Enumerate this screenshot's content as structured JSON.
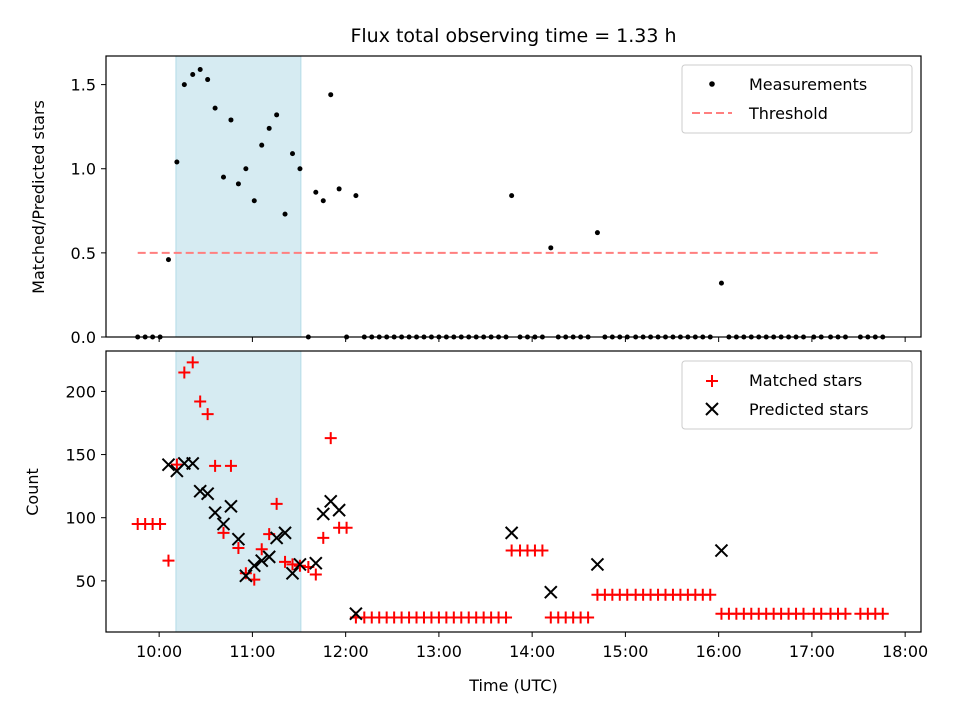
{
  "chart_data": [
    {
      "type": "scatter",
      "panel": "top",
      "title": "Flux total observing time = 1.33 h",
      "xlabel": "",
      "ylabel": "Matched/Predicted stars",
      "xlim": [
        9.43,
        18.17
      ],
      "ylim": [
        0,
        1.67
      ],
      "yticks": [
        0.0,
        0.5,
        1.0,
        1.5
      ],
      "ytick_labels": [
        "0.0",
        "0.5",
        "1.0",
        "1.5"
      ],
      "shaded_span": [
        10.18,
        11.52
      ],
      "threshold": {
        "name": "Threshold",
        "value": 0.5,
        "x_range": [
          9.77,
          17.73
        ],
        "color": "#ff7f7f"
      },
      "series": [
        {
          "name": "Measurements",
          "color": "#000000",
          "marker": "dot",
          "x": [
            9.77,
            9.85,
            9.93,
            10.01,
            10.1,
            10.19,
            10.27,
            10.36,
            10.44,
            10.52,
            10.6,
            10.69,
            10.77,
            10.85,
            10.93,
            11.02,
            11.1,
            11.18,
            11.26,
            11.35,
            11.43,
            11.51,
            11.6,
            11.68,
            11.76,
            11.84,
            11.93,
            12.01,
            12.11,
            12.2,
            12.28,
            12.36,
            12.44,
            12.52,
            12.6,
            12.68,
            12.76,
            12.84,
            12.92,
            13.0,
            13.08,
            13.16,
            13.24,
            13.32,
            13.4,
            13.48,
            13.56,
            13.64,
            13.72,
            13.78,
            13.87,
            13.95,
            14.03,
            14.11,
            14.2,
            14.28,
            14.36,
            14.44,
            14.52,
            14.6,
            14.7,
            14.78,
            14.86,
            14.94,
            15.02,
            15.11,
            15.19,
            15.27,
            15.35,
            15.43,
            15.51,
            15.59,
            15.67,
            15.75,
            15.83,
            15.91,
            16.03,
            16.11,
            16.19,
            16.27,
            16.35,
            16.43,
            16.51,
            16.59,
            16.67,
            16.75,
            16.83,
            16.91,
            17.02,
            17.1,
            17.2,
            17.28,
            17.36,
            17.52,
            17.6,
            17.68,
            17.76
          ],
          "y": [
            0,
            0,
            0,
            0,
            0.46,
            1.04,
            1.5,
            1.56,
            1.59,
            1.53,
            1.36,
            0.95,
            1.29,
            0.91,
            1.0,
            0.81,
            1.14,
            1.24,
            1.32,
            0.73,
            1.09,
            1.0,
            0,
            0.86,
            0.81,
            1.44,
            0.88,
            0,
            0.84,
            0,
            0,
            0,
            0,
            0,
            0,
            0,
            0,
            0,
            0,
            0,
            0,
            0,
            0,
            0,
            0,
            0,
            0,
            0,
            0,
            0.84,
            0,
            0,
            0,
            0,
            0.53,
            0,
            0,
            0,
            0,
            0,
            0.62,
            0,
            0,
            0,
            0,
            0,
            0,
            0,
            0,
            0,
            0,
            0,
            0,
            0,
            0,
            0,
            0.32,
            0,
            0,
            0,
            0,
            0,
            0,
            0,
            0,
            0,
            0,
            0,
            0,
            0,
            0,
            0,
            0,
            0,
            0,
            0,
            0
          ]
        }
      ],
      "legend": {
        "location": "top-right",
        "entries": [
          "Measurements",
          "Threshold"
        ]
      }
    },
    {
      "type": "scatter",
      "panel": "bottom",
      "title": "",
      "xlabel": "Time (UTC)",
      "ylabel": "Count",
      "xlim": [
        9.43,
        18.17
      ],
      "ylim": [
        9.5,
        232
      ],
      "yticks": [
        50,
        100,
        150,
        200
      ],
      "ytick_labels": [
        "50",
        "100",
        "150",
        "200"
      ],
      "xticks": [
        10,
        11,
        12,
        13,
        14,
        15,
        16,
        17,
        18
      ],
      "xtick_labels": [
        "10:00",
        "11:00",
        "12:00",
        "13:00",
        "14:00",
        "15:00",
        "16:00",
        "17:00",
        "18:00"
      ],
      "shaded_span": [
        10.18,
        11.52
      ],
      "series": [
        {
          "name": "Matched stars",
          "color": "#ff0000",
          "marker": "plus",
          "x": [
            9.77,
            9.85,
            9.93,
            10.01,
            10.1,
            10.19,
            10.27,
            10.36,
            10.44,
            10.52,
            10.6,
            10.69,
            10.77,
            10.85,
            10.93,
            11.02,
            11.1,
            11.18,
            11.26,
            11.35,
            11.43,
            11.51,
            11.6,
            11.68,
            11.76,
            11.84,
            11.93,
            12.01,
            12.11,
            12.2,
            12.28,
            12.36,
            12.44,
            12.52,
            12.6,
            12.68,
            12.76,
            12.84,
            12.92,
            13.0,
            13.08,
            13.16,
            13.24,
            13.32,
            13.4,
            13.48,
            13.56,
            13.64,
            13.72,
            13.78,
            13.87,
            13.95,
            14.03,
            14.11,
            14.2,
            14.28,
            14.36,
            14.44,
            14.52,
            14.6,
            14.7,
            14.78,
            14.86,
            14.94,
            15.02,
            15.11,
            15.19,
            15.27,
            15.35,
            15.43,
            15.51,
            15.59,
            15.67,
            15.75,
            15.83,
            15.91,
            16.03,
            16.11,
            16.19,
            16.27,
            16.35,
            16.43,
            16.51,
            16.59,
            16.67,
            16.75,
            16.83,
            16.91,
            17.02,
            17.1,
            17.2,
            17.28,
            17.36,
            17.52,
            17.6,
            17.68,
            17.76
          ],
          "y": [
            95,
            95,
            95,
            95,
            66,
            142,
            215,
            223,
            192,
            182,
            141,
            88,
            141,
            76,
            56,
            51,
            75,
            87,
            111,
            65,
            63,
            62,
            61,
            55,
            84,
            163,
            92,
            92,
            21,
            21,
            21,
            21,
            21,
            21,
            21,
            21,
            21,
            21,
            21,
            21,
            21,
            21,
            21,
            21,
            21,
            21,
            21,
            21,
            21,
            74,
            74,
            74,
            74,
            74,
            21,
            21,
            21,
            21,
            21,
            21,
            39,
            39,
            39,
            39,
            39,
            39,
            39,
            39,
            39,
            39,
            39,
            39,
            39,
            39,
            39,
            39,
            24,
            24,
            24,
            24,
            24,
            24,
            24,
            24,
            24,
            24,
            24,
            24,
            24,
            24,
            24,
            24,
            24,
            24,
            24,
            24,
            24
          ]
        },
        {
          "name": "Predicted stars",
          "color": "#000000",
          "marker": "x",
          "x": [
            10.1,
            10.19,
            10.27,
            10.36,
            10.44,
            10.52,
            10.6,
            10.69,
            10.77,
            10.85,
            10.93,
            11.02,
            11.1,
            11.18,
            11.26,
            11.35,
            11.43,
            11.51,
            11.68,
            11.76,
            11.84,
            11.93,
            12.11,
            13.78,
            14.2,
            14.7,
            16.03
          ],
          "y": [
            142,
            137,
            143,
            143,
            121,
            119,
            104,
            95,
            109,
            83,
            54,
            62,
            66,
            69,
            84,
            88,
            56,
            63,
            64,
            103,
            113,
            106,
            24,
            88,
            41,
            63,
            74
          ]
        }
      ],
      "legend": {
        "location": "top-right",
        "entries": [
          "Matched stars",
          "Predicted stars"
        ]
      }
    }
  ]
}
